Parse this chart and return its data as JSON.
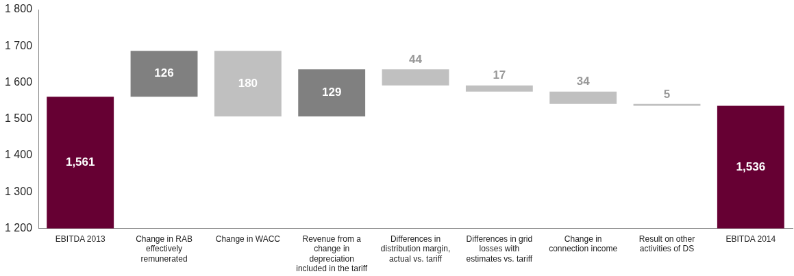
{
  "chart_data": {
    "type": "bar",
    "categories": [
      "EBITDA 2013",
      "Change in RAB effectively remunerated",
      "Change in WACC",
      "Revenue from a change in depreciation included in the tariff",
      "Differences in distribution margin, actual vs. tariff",
      "Differences in grid losses with estimates vs. tariff",
      "Change in connection income",
      "Result on other activities of DS",
      "EBITDA 2014"
    ],
    "values": [
      1561,
      126,
      -180,
      129,
      -44,
      -17,
      -34,
      -5,
      1536
    ],
    "base": [
      null,
      1561,
      1687,
      1507,
      1636,
      1592,
      1575,
      1541,
      null
    ],
    "value_labels": [
      "1,561",
      "126",
      "180",
      "129",
      "44",
      "17",
      "34",
      "5",
      "1,536"
    ],
    "colors": [
      "#660033",
      "#808080",
      "#c0c0c0",
      "#808080",
      "#c0c0c0",
      "#c0c0c0",
      "#c0c0c0",
      "#c0c0c0",
      "#660033"
    ],
    "ylim": [
      1200,
      1800
    ],
    "yticks": [
      {
        "value": 1200,
        "label": "1 200"
      },
      {
        "value": 1300,
        "label": "1 300"
      },
      {
        "value": 1400,
        "label": "1 400"
      },
      {
        "value": 1500,
        "label": "1 500"
      },
      {
        "value": 1600,
        "label": "1 600"
      },
      {
        "value": 1700,
        "label": "1 700"
      },
      {
        "value": 1800,
        "label": "1 800"
      }
    ],
    "grid": false,
    "legend": false
  }
}
